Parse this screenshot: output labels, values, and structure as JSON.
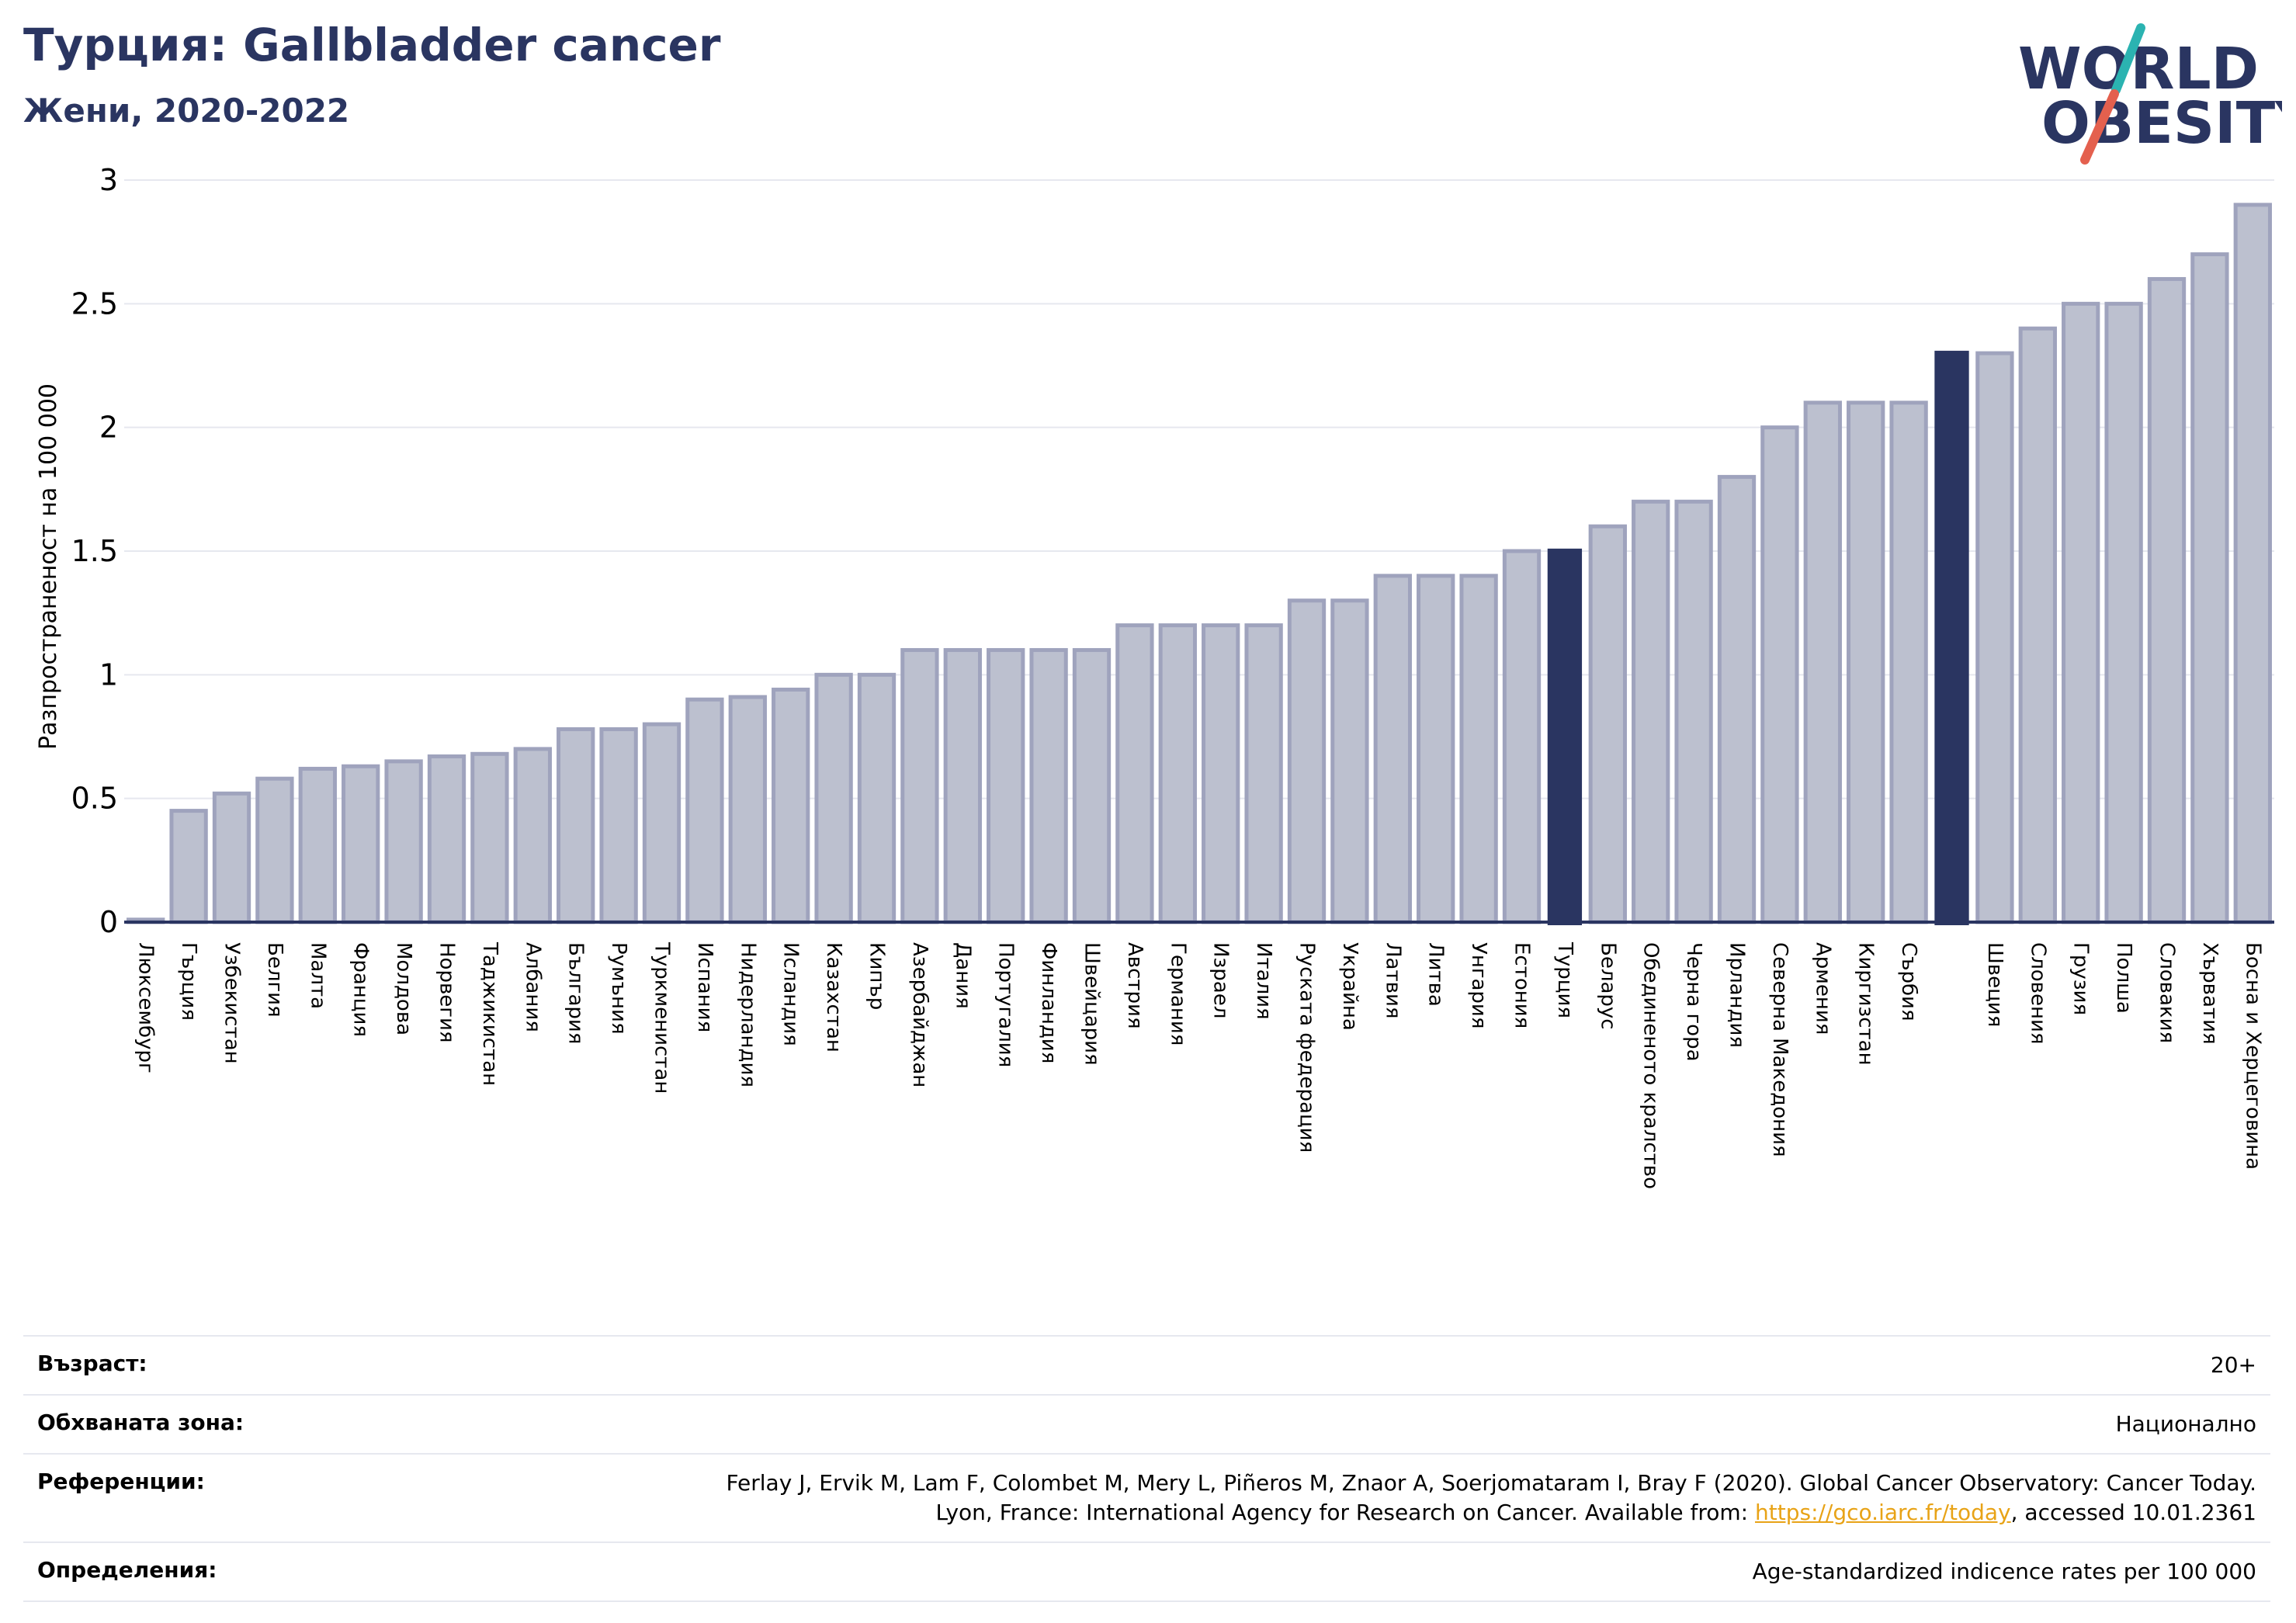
{
  "header": {
    "title": "Турция: Gallbladder cancer",
    "subtitle": "Жени, 2020-2022"
  },
  "logo": {
    "line1": "WORLD",
    "line2": "OBESITY"
  },
  "colors": {
    "bar": "#bcc0cf",
    "bar_stroke": "#9fa3bd",
    "highlight": "#2a3561",
    "grid": "#e6e8ef",
    "axis": "#2a3561"
  },
  "chart_data": {
    "type": "bar",
    "title": "Турция: Gallbladder cancer",
    "subtitle": "Жени, 2020-2022",
    "ylabel": "Разпространеност  на 100 000",
    "xlabel": "",
    "ylim": [
      0,
      3
    ],
    "yticks": [
      "0",
      "0.5",
      "1",
      "1.5",
      "2",
      "2.5",
      "3"
    ],
    "grid": true,
    "highlight": [
      "Турция"
    ],
    "categories": [
      "Люксембург",
      "Гърция",
      "Узбекистан",
      "Белгия",
      "Малта",
      "Франция",
      "Молдова",
      "Норвегия",
      "Таджикистан",
      "Албания",
      "България",
      "Румъния",
      "Туркменистан",
      "Испания",
      "Нидерландия",
      "Исландия",
      "Казахстан",
      "Кипър",
      "Азербайджан",
      "Дания",
      "Португалия",
      "Финландия",
      "Швейцария",
      "Австрия",
      "Германия",
      "Израел",
      "Италия",
      "Руската федерация",
      "Украйна",
      "Латвия",
      "Литва",
      "Унгария",
      "Естония",
      "Турция",
      "Беларус",
      "Обединеното кралство",
      "Черна гора",
      "Ирландия",
      "Северна Македония",
      "Армения",
      "Киргизстан",
      "Сърбия",
      "",
      "Швеция",
      "Словения",
      "Грузия",
      "Полша",
      "Словакия",
      "Хърватия",
      "Босна и Херцеговина"
    ],
    "values": [
      0.01,
      0.45,
      0.52,
      0.58,
      0.62,
      0.63,
      0.65,
      0.67,
      0.68,
      0.7,
      0.78,
      0.78,
      0.8,
      0.9,
      0.91,
      0.94,
      1.0,
      1.0,
      1.1,
      1.1,
      1.1,
      1.1,
      1.1,
      1.2,
      1.2,
      1.2,
      1.2,
      1.3,
      1.3,
      1.4,
      1.4,
      1.4,
      1.5,
      1.51,
      1.6,
      1.7,
      1.7,
      1.8,
      2.0,
      2.1,
      2.1,
      2.1,
      2.31,
      2.3,
      2.4,
      2.5,
      2.5,
      2.6,
      2.7,
      2.9
    ],
    "highlight_indices": [
      33,
      42
    ]
  },
  "meta": {
    "rows": [
      {
        "key": "Възраст:",
        "value": "20+"
      },
      {
        "key": "Обхваната зона:",
        "value": "Национално"
      },
      {
        "key": "Референции:",
        "value_line1": "Ferlay J, Ervik M, Lam F, Colombet M, Mery L, Piñeros M, Znaor A, Soerjomataram I, Bray F (2020). Global Cancer Observatory: Cancer Today.",
        "value_line2_pre": "Lyon, France: International Agency for Research on Cancer. Available from: ",
        "link": "https://gco.iarc.fr/today",
        "value_line2_post": ", accessed 10.01.2361"
      },
      {
        "key": "Определения:",
        "value": "Age-standardized indicence rates per 100 000"
      }
    ]
  }
}
